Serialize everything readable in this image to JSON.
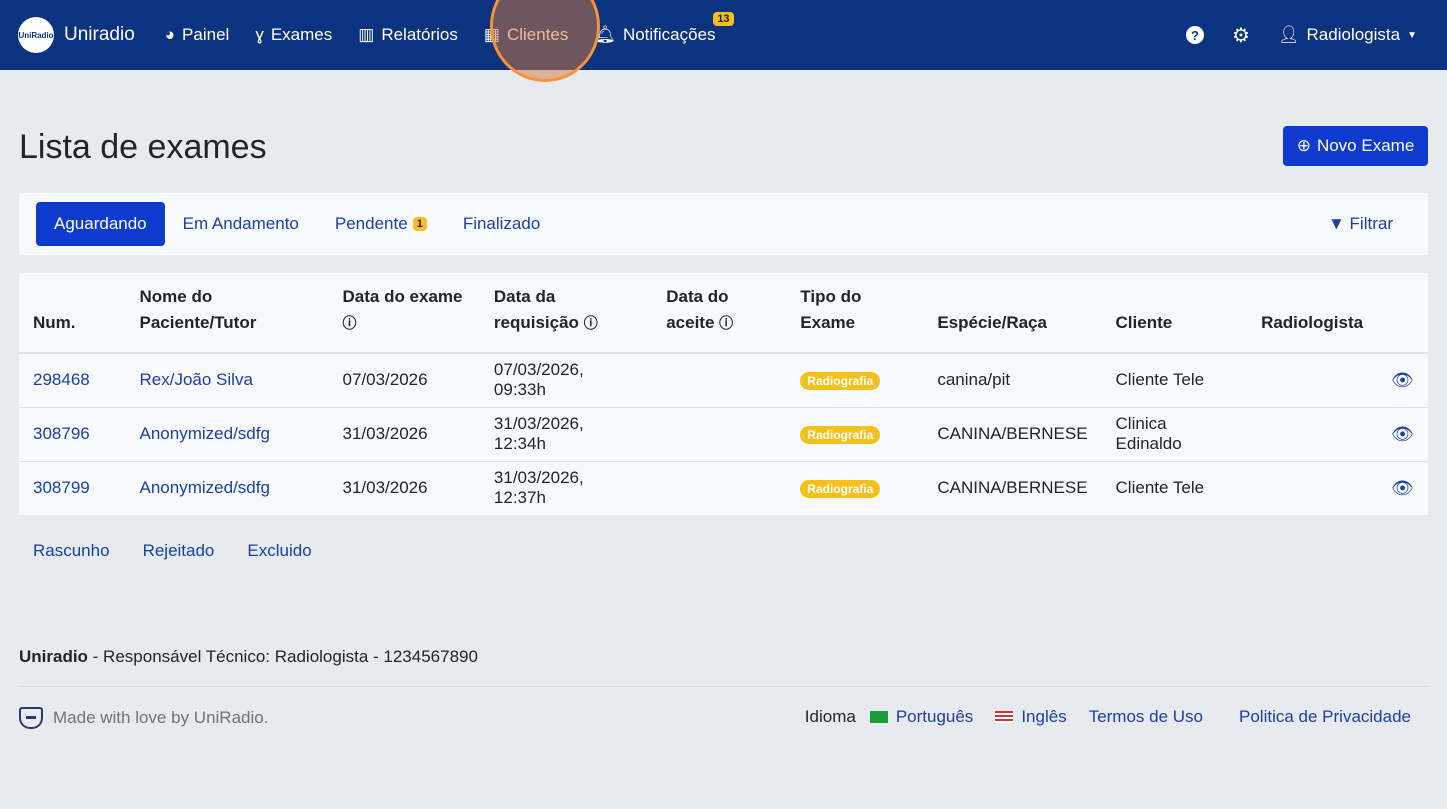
{
  "nav": {
    "logo_text": "UniRadio",
    "brand": "Uniradio",
    "items": [
      {
        "label": "Painel",
        "icon": "gauge-icon"
      },
      {
        "label": "Exames",
        "icon": "stethoscope-icon"
      },
      {
        "label": "Relatórios",
        "icon": "chart-bar-icon"
      },
      {
        "label": "Clientes",
        "icon": "building-icon"
      },
      {
        "label": "Notificações",
        "icon": "bell-icon",
        "badge": "13"
      }
    ],
    "user": "Radiologista"
  },
  "page": {
    "title": "Lista de exames",
    "new_button": "Novo Exame"
  },
  "tabs": [
    {
      "label": "Aguardando",
      "active": true
    },
    {
      "label": "Em Andamento"
    },
    {
      "label": "Pendente",
      "badge": "1"
    },
    {
      "label": "Finalizado"
    }
  ],
  "filter": "Filtrar",
  "table": {
    "headers": [
      "Num.",
      "Nome do Paciente/Tutor",
      "Data do exame",
      "Data da requisição",
      "Data do aceite",
      "Tipo do Exame",
      "Espécie/Raça",
      "Cliente",
      "Radiologista"
    ],
    "rows": [
      {
        "num": "298468",
        "name": "Rex/João Silva",
        "exam_date": "07/03/2026",
        "req_date": "07/03/2026, 09:33h",
        "accept": "",
        "type": "Radiografia",
        "species": "canina/pit",
        "client": "Cliente Tele",
        "radiologist": ""
      },
      {
        "num": "308796",
        "name": "Anonymized/sdfg",
        "exam_date": "31/03/2026",
        "req_date": "31/03/2026, 12:34h",
        "accept": "",
        "type": "Radiografia",
        "species": "CANINA/BERNESE",
        "client": "Clinica Edinaldo",
        "radiologist": ""
      },
      {
        "num": "308799",
        "name": "Anonymized/sdfg",
        "exam_date": "31/03/2026",
        "req_date": "31/03/2026, 12:37h",
        "accept": "",
        "type": "Radiografia",
        "species": "CANINA/BERNESE",
        "client": "Cliente Tele",
        "radiologist": ""
      }
    ]
  },
  "lower_links": [
    "Rascunho",
    "Rejeitado",
    "Excluido"
  ],
  "footer": {
    "brand": "Uniradio",
    "resp": " - Responsável Técnico: Radiologista - 1234567890",
    "made": "Made with love by UniRadio.",
    "idioma": "Idioma",
    "pt": "Português",
    "en": "Inglês",
    "terms": "Termos de Uso",
    "privacy": "Politica de Privacidade"
  }
}
